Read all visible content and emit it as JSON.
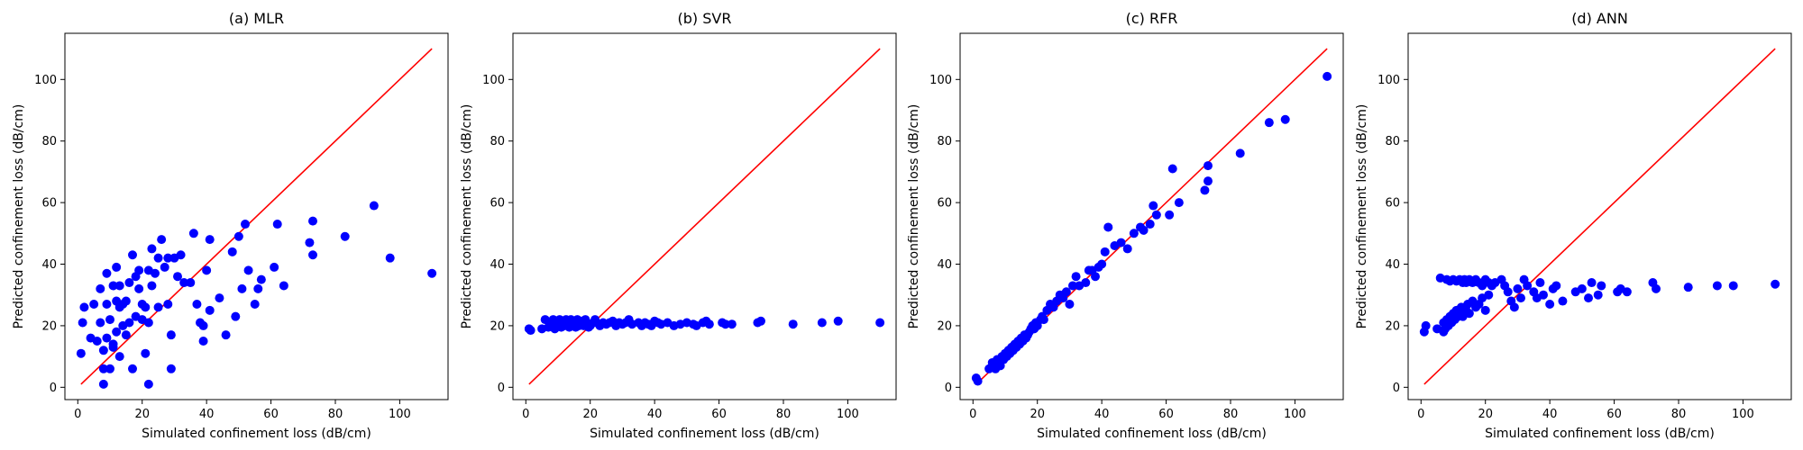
{
  "chart_data": [
    {
      "type": "scatter",
      "title": "(a) MLR",
      "xlabel": "Simulated confinement loss (dB/cm)",
      "ylabel": "Predicted confinement loss (dB/cm)",
      "xlim": [
        -4,
        115
      ],
      "ylim": [
        -4,
        115
      ],
      "xticks": [
        0,
        20,
        40,
        60,
        80,
        100
      ],
      "yticks": [
        0,
        20,
        40,
        60,
        80,
        100
      ],
      "grid": false,
      "marker_color": "#0000ff",
      "reference_line": {
        "x": [
          1,
          110
        ],
        "y": [
          1,
          110
        ],
        "color": "#ff0000"
      },
      "points": {
        "x": [
          1,
          1.5,
          2,
          4,
          5,
          6,
          7,
          7,
          8,
          8,
          8,
          9,
          9,
          9,
          10,
          10,
          11,
          11,
          11,
          12,
          12,
          12,
          13,
          13,
          13,
          14,
          14,
          15,
          15,
          16,
          16,
          17,
          17,
          18,
          18,
          19,
          19,
          20,
          20,
          21,
          21,
          22,
          22,
          22,
          23,
          23,
          24,
          25,
          25,
          26,
          27,
          28,
          28,
          29,
          29,
          30,
          31,
          32,
          33,
          35,
          36,
          37,
          38,
          39,
          39,
          40,
          41,
          41,
          44,
          46,
          48,
          49,
          50,
          51,
          52,
          53,
          55,
          56,
          57,
          61,
          62,
          64,
          72,
          73,
          73,
          83,
          92,
          97,
          110
        ],
        "y": [
          11,
          21,
          26,
          16,
          27,
          15,
          21,
          32,
          1,
          6,
          12,
          37,
          16,
          27,
          6,
          22,
          14,
          33,
          13,
          18,
          28,
          39,
          26,
          33,
          10,
          20,
          27,
          17,
          28,
          21,
          34,
          43,
          6,
          23,
          36,
          32,
          38,
          22,
          27,
          26,
          11,
          1,
          21,
          38,
          33,
          45,
          37,
          26,
          42,
          48,
          39,
          42,
          27,
          6,
          17,
          42,
          36,
          43,
          34,
          34,
          50,
          27,
          21,
          15,
          20,
          38,
          48,
          25,
          29,
          17,
          44,
          23,
          49,
          32,
          53,
          38,
          27,
          32,
          35,
          39,
          53,
          33,
          47,
          43,
          54,
          49,
          59,
          42,
          37
        ]
      }
    },
    {
      "type": "scatter",
      "title": "(b) SVR",
      "xlabel": "Simulated confinement loss (dB/cm)",
      "ylabel": "Predicted confinement loss (dB/cm)",
      "xlim": [
        -4,
        115
      ],
      "ylim": [
        -4,
        115
      ],
      "xticks": [
        0,
        20,
        40,
        60,
        80,
        100
      ],
      "yticks": [
        0,
        20,
        40,
        60,
        80,
        100
      ],
      "grid": false,
      "marker_color": "#0000ff",
      "reference_line": {
        "x": [
          1,
          110
        ],
        "y": [
          1,
          110
        ],
        "color": "#ff0000"
      },
      "points": {
        "x": [
          1,
          1.5,
          5,
          6,
          7,
          7.5,
          8,
          8.5,
          9,
          9.5,
          10,
          10.5,
          11,
          11.5,
          12,
          12.5,
          13,
          13.5,
          14,
          14.5,
          15,
          15.5,
          16,
          16.5,
          17,
          17.5,
          18,
          18.5,
          19,
          19.5,
          20,
          21,
          21.5,
          22,
          23,
          24,
          25,
          26,
          27,
          28,
          29,
          30,
          31,
          32,
          33,
          35,
          36,
          37,
          38,
          39,
          40,
          41,
          42,
          44,
          46,
          48,
          50,
          52,
          53,
          55,
          56,
          57,
          61,
          62,
          64,
          72,
          73,
          83,
          92,
          97,
          110
        ],
        "y": [
          19,
          18.5,
          19,
          22,
          19.5,
          21,
          20,
          22,
          19,
          21,
          20.5,
          22,
          19.5,
          21,
          20,
          22,
          21,
          19.5,
          22,
          20.5,
          21,
          19.5,
          22,
          20,
          21,
          21.5,
          20,
          22,
          21,
          19.5,
          20,
          21,
          22,
          21,
          20,
          21,
          20.5,
          21,
          21.5,
          20,
          21,
          20.5,
          21,
          22,
          20.5,
          21,
          20,
          21,
          20.5,
          20,
          21.5,
          21,
          20.5,
          21,
          20,
          20.5,
          21,
          20.5,
          20,
          21,
          21.5,
          20.5,
          21,
          20.5,
          20.5,
          21,
          21.5,
          20.5,
          21,
          21.5,
          21
        ]
      }
    },
    {
      "type": "scatter",
      "title": "(c) RFR",
      "xlabel": "Simulated confinement loss (dB/cm)",
      "ylabel": "Predicted confinement loss (dB/cm)",
      "xlim": [
        -4,
        115
      ],
      "ylim": [
        -4,
        115
      ],
      "xticks": [
        0,
        20,
        40,
        60,
        80,
        100
      ],
      "yticks": [
        0,
        20,
        40,
        60,
        80,
        100
      ],
      "grid": false,
      "marker_color": "#0000ff",
      "reference_line": {
        "x": [
          1,
          110
        ],
        "y": [
          1,
          110
        ],
        "color": "#ff0000"
      },
      "points": {
        "x": [
          1,
          1.5,
          5,
          6,
          7,
          7.5,
          8,
          8.5,
          9,
          9.5,
          10,
          10.5,
          11,
          11.5,
          12,
          12.5,
          13,
          13.5,
          14,
          14.5,
          15,
          15.5,
          16,
          16.5,
          17,
          17.5,
          18,
          18.5,
          19,
          19.5,
          20,
          21,
          21.5,
          22,
          23,
          24,
          25,
          26,
          27,
          28,
          29,
          30,
          31,
          32,
          33,
          35,
          36,
          37,
          38,
          39,
          40,
          41,
          42,
          44,
          46,
          48,
          50,
          52,
          53,
          55,
          56,
          57,
          61,
          62,
          64,
          72,
          73,
          73,
          83,
          92,
          97,
          110
        ],
        "y": [
          3,
          2,
          6,
          8,
          6,
          9,
          8,
          7,
          10,
          9,
          11,
          10,
          12,
          11,
          13,
          12,
          14,
          13,
          15,
          14,
          16,
          15,
          17,
          16,
          17,
          18,
          19,
          20,
          19,
          21,
          20,
          22,
          23,
          22,
          25,
          27,
          26,
          28,
          30,
          29,
          31,
          27,
          33,
          36,
          33,
          34,
          38,
          38,
          36,
          39,
          40,
          44,
          52,
          46,
          47,
          45,
          50,
          52,
          51,
          53,
          59,
          56,
          56,
          71,
          60,
          64,
          67,
          72,
          76,
          86,
          87,
          101
        ]
      }
    },
    {
      "type": "scatter",
      "title": "(d) ANN",
      "xlabel": "Simulated confinement loss (dB/cm)",
      "ylabel": "Predicted confinement loss (dB/cm)",
      "xlim": [
        -4,
        115
      ],
      "ylim": [
        -4,
        115
      ],
      "xticks": [
        0,
        20,
        40,
        60,
        80,
        100
      ],
      "yticks": [
        0,
        20,
        40,
        60,
        80,
        100
      ],
      "grid": false,
      "marker_color": "#0000ff",
      "reference_line": {
        "x": [
          1,
          110
        ],
        "y": [
          1,
          110
        ],
        "color": "#ff0000"
      },
      "points": {
        "x": [
          1,
          1.5,
          5,
          6,
          7,
          7,
          7.5,
          8,
          8,
          8.5,
          9,
          9,
          9.5,
          10,
          10,
          10.5,
          11,
          11,
          11.5,
          12,
          12,
          12.5,
          13,
          13,
          13.5,
          14,
          14,
          14.5,
          15,
          15,
          16,
          16,
          17,
          17,
          18,
          18,
          19,
          19,
          20,
          20,
          21,
          21,
          22,
          23,
          25,
          26,
          27,
          28,
          29,
          30,
          31,
          32,
          33,
          35,
          36,
          37,
          38,
          40,
          41,
          42,
          44,
          48,
          50,
          52,
          53,
          55,
          56,
          61,
          62,
          64,
          72,
          73,
          83,
          92,
          97,
          110
        ],
        "y": [
          18,
          20,
          19,
          35.5,
          18,
          21,
          19,
          35,
          22,
          20,
          23,
          34.5,
          21,
          24,
          35,
          22,
          25,
          34.5,
          23,
          35,
          24,
          26,
          34,
          23,
          35,
          25,
          34,
          27,
          35,
          24,
          34,
          28,
          35,
          26,
          34,
          27,
          33,
          29,
          35,
          25,
          34,
          30,
          33,
          34,
          35,
          33,
          31,
          28,
          26,
          32,
          29,
          35,
          33,
          31,
          29,
          34,
          30,
          27,
          32,
          33,
          28,
          31,
          32,
          29,
          34,
          30,
          33,
          31,
          32,
          31,
          34,
          32,
          32.5,
          33,
          33,
          33.5
        ]
      }
    }
  ]
}
